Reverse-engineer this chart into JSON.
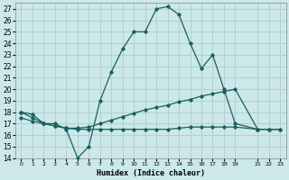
{
  "xlabel": "Humidex (Indice chaleur)",
  "bg_color": "#cce8e8",
  "grid_color": "#aacece",
  "line_color": "#1a6060",
  "ylim": [
    14,
    27.5
  ],
  "yticks": [
    14,
    15,
    16,
    17,
    18,
    19,
    20,
    21,
    22,
    23,
    24,
    25,
    26,
    27
  ],
  "xtick_labels": [
    "0",
    "1",
    "2",
    "3",
    "4",
    "5",
    "6",
    "7",
    "8",
    "9",
    "1011",
    "12",
    "13",
    "14",
    "15",
    "16",
    "17",
    "18",
    "19",
    "",
    "21",
    "22",
    "23"
  ],
  "xlim": [
    -0.5,
    23.5
  ],
  "series1_x": [
    0,
    1,
    2,
    3,
    4,
    5,
    6,
    7,
    8,
    9,
    10,
    11,
    12,
    13,
    14,
    15,
    16,
    17,
    18,
    19,
    21
  ],
  "series1_y": [
    18.0,
    17.8,
    17.0,
    17.0,
    16.5,
    14.0,
    15.0,
    19.0,
    21.5,
    23.5,
    25.0,
    25.0,
    27.0,
    27.2,
    26.5,
    24.0,
    21.8,
    23.0,
    20.0,
    17.0,
    16.5
  ],
  "series2_x": [
    0,
    1,
    2,
    3,
    4,
    5,
    6,
    7,
    8,
    9,
    10,
    11,
    12,
    13,
    14,
    15,
    16,
    17,
    18,
    19,
    21,
    22,
    23
  ],
  "series2_y": [
    18.0,
    17.5,
    17.0,
    16.8,
    16.6,
    16.6,
    16.7,
    17.0,
    17.3,
    17.6,
    17.9,
    18.2,
    18.4,
    18.6,
    18.9,
    19.1,
    19.4,
    19.6,
    19.8,
    20.0,
    16.5,
    16.5,
    16.5
  ],
  "series3_x": [
    0,
    1,
    2,
    3,
    4,
    5,
    6,
    7,
    8,
    9,
    10,
    11,
    12,
    13,
    14,
    15,
    16,
    17,
    18,
    19,
    21,
    22,
    23
  ],
  "series3_y": [
    17.5,
    17.2,
    17.0,
    16.8,
    16.6,
    16.5,
    16.5,
    16.5,
    16.5,
    16.5,
    16.5,
    16.5,
    16.5,
    16.5,
    16.6,
    16.7,
    16.7,
    16.7,
    16.7,
    16.7,
    16.5,
    16.5,
    16.5
  ]
}
